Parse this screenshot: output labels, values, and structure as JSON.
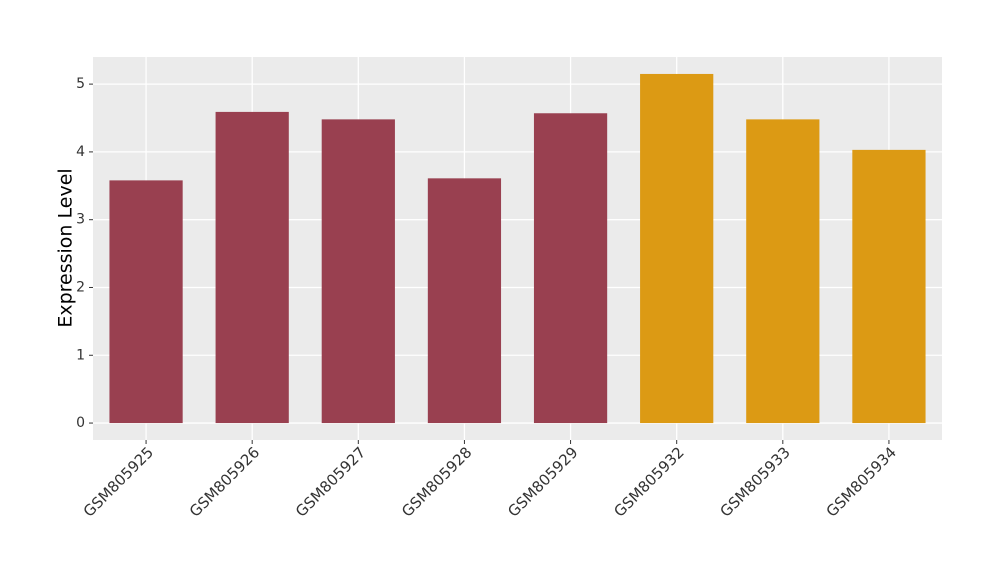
{
  "chart_data": {
    "type": "bar",
    "y_label": "Expression Level",
    "categories": [
      "GSM805925",
      "GSM805926",
      "GSM805927",
      "GSM805928",
      "GSM805929",
      "GSM805932",
      "GSM805933",
      "GSM805934"
    ],
    "values": [
      3.58,
      4.59,
      4.48,
      3.61,
      4.57,
      5.15,
      4.48,
      4.03
    ],
    "colors": [
      "#994050",
      "#994050",
      "#994050",
      "#994050",
      "#994050",
      "#DC9A14",
      "#DC9A14",
      "#DC9A14"
    ],
    "ylim": [
      -0.25,
      5.4
    ],
    "yticks": [
      0,
      1,
      2,
      3,
      4,
      5
    ],
    "grid": true
  }
}
